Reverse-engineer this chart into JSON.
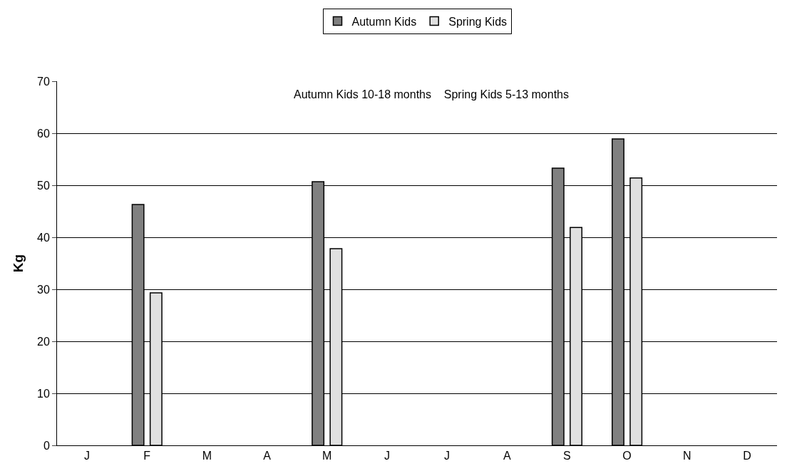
{
  "chart_data": {
    "type": "bar",
    "categories": [
      "J",
      "F",
      "M",
      "A",
      "M",
      "J",
      "J",
      "A",
      "S",
      "O",
      "N",
      "D"
    ],
    "series": [
      {
        "name": "Autumn Kids",
        "color": "#808080",
        "values": [
          null,
          46.3,
          null,
          null,
          50.7,
          null,
          null,
          null,
          53.3,
          58.9,
          null,
          null
        ]
      },
      {
        "name": "Spring Kids",
        "color": "#e0e0e0",
        "values": [
          null,
          29.3,
          null,
          null,
          37.8,
          null,
          null,
          null,
          41.9,
          51.4,
          null,
          null
        ]
      }
    ],
    "ylabel": "Kg",
    "ylim": [
      0,
      70
    ],
    "yticks": [
      0,
      10,
      20,
      30,
      40,
      50,
      60,
      70
    ],
    "grid": "y",
    "legend": "top",
    "annotations": [
      "Autumn Kids 10-18 months    Spring Kids 5-13 months"
    ]
  }
}
